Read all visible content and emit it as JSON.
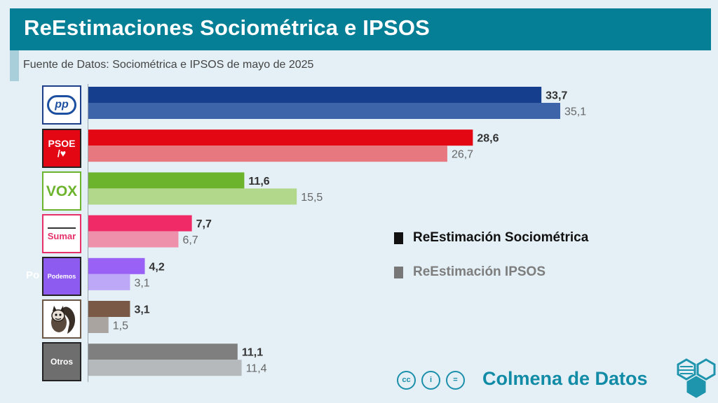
{
  "header": {
    "title": "ReEstimaciones Sociométrica e IPSOS",
    "source": "Fuente de Datos: Sociométrica e IPSOS de mayo de 2025"
  },
  "logos": {
    "pp": "pp",
    "psoe_top": "PSOE",
    "psoe_bottom": "/♥",
    "vox": "VOX",
    "sumar": "Sumar",
    "podemos": "Podemos",
    "otros": "Otros",
    "cut_text": "Po"
  },
  "legend": {
    "sociometrica": "ReEstimación Sociométrica",
    "ipsos": "ReEstimación IPSOS"
  },
  "footer": {
    "cc": "cc",
    "by": "i",
    "nd": "=",
    "brand": "Colmena de Datos"
  },
  "chart_data": {
    "type": "bar",
    "orientation": "horizontal",
    "categories": [
      "PP",
      "PSOE",
      "VOX",
      "Sumar",
      "Podemos",
      "Se Acabó La Fiesta",
      "Otros"
    ],
    "series": [
      {
        "name": "ReEstimación Sociométrica",
        "values": [
          33.7,
          28.6,
          11.6,
          7.7,
          4.2,
          3.1,
          11.1
        ],
        "labels": [
          "33,7",
          "28,6",
          "11,6",
          "7,7",
          "4,2",
          "3,1",
          "11,1"
        ],
        "colors": [
          "#153f8c",
          "#e30613",
          "#6db42d",
          "#ef2a66",
          "#9961f5",
          "#7a5946",
          "#7f7f7f"
        ]
      },
      {
        "name": "ReEstimación IPSOS",
        "values": [
          35.1,
          26.7,
          15.5,
          6.7,
          3.1,
          1.5,
          11.4
        ],
        "labels": [
          "35,1",
          "26,7",
          "15,5",
          "6,7",
          "3,1",
          "1,5",
          "11,4"
        ],
        "colors": [
          "#3d64a8",
          "#e8787f",
          "#b2d88b",
          "#ee8fac",
          "#bda8f8",
          "#a9a49f",
          "#b5b9bb"
        ]
      }
    ],
    "legend_position": "right",
    "grid": false,
    "xlim": [
      0,
      35.1
    ]
  }
}
